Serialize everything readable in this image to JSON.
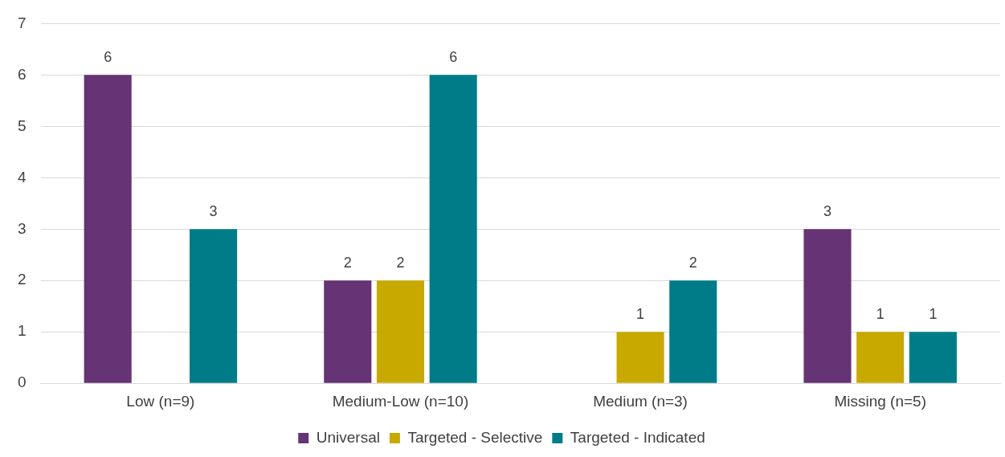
{
  "chart_data": {
    "type": "bar",
    "categories": [
      "Low (n=9)",
      "Medium-Low (n=10)",
      "Medium (n=3)",
      "Missing (n=5)"
    ],
    "series": [
      {
        "name": "Universal",
        "color": "#663374",
        "values": [
          6,
          2,
          null,
          3
        ]
      },
      {
        "name": "Targeted - Selective",
        "color": "#c8a900",
        "values": [
          null,
          2,
          1,
          1
        ]
      },
      {
        "name": "Targeted - Indicated",
        "color": "#007c89",
        "values": [
          3,
          6,
          2,
          1
        ]
      }
    ],
    "ylim": [
      0,
      7
    ],
    "yticks": [
      0,
      1,
      2,
      3,
      4,
      5,
      6,
      7
    ],
    "grid": "y",
    "legend": "bottom",
    "data_labels": true
  }
}
